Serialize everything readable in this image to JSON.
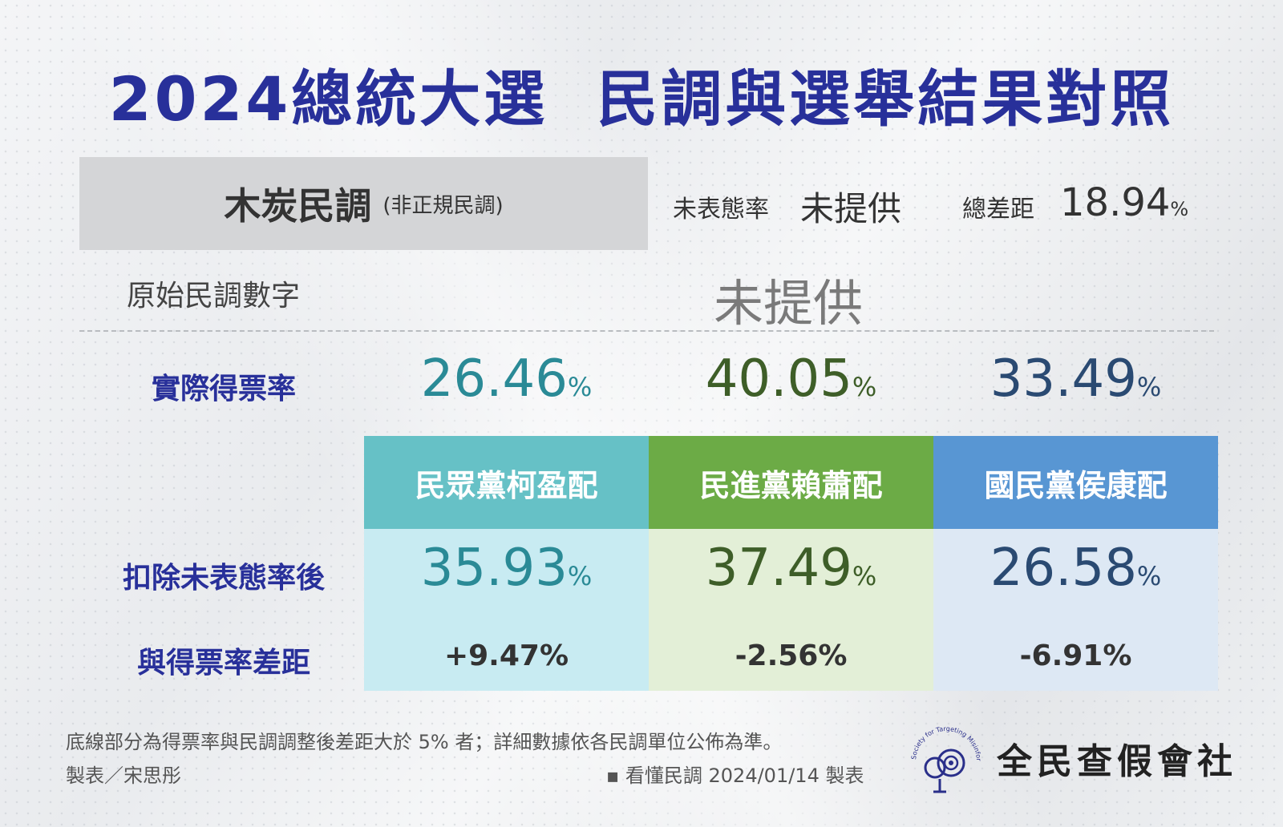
{
  "title": "2024總統大選  民調與選舉結果對照",
  "survey": {
    "name": "木炭民調",
    "note": "(非正規民調)",
    "undisclosed_label": "未表態率",
    "undisclosed_value": "未提供",
    "total_gap_label": "總差距",
    "total_gap_value": "18.94",
    "total_gap_unit": "%"
  },
  "raw": {
    "label": "原始民調數字",
    "value": "未提供"
  },
  "colors": {
    "title": "#28309a",
    "tpp": "#66c1c6",
    "tpp_light": "#c8ebf2",
    "dpp": "#6cab46",
    "dpp_light": "#e3efd7",
    "kmt": "#5896d3",
    "kmt_light": "#dde8f4"
  },
  "rows": {
    "actual": "實際得票率",
    "adjusted": "扣除未表態率後",
    "gap": "與得票率差距"
  },
  "chart_data": {
    "type": "table",
    "title": "2024總統大選  民調與選舉結果對照",
    "categories": [
      "民眾黨柯盈配",
      "民進黨賴蕭配",
      "國民黨侯康配"
    ],
    "series": [
      {
        "name": "實際得票率",
        "values": [
          26.46,
          40.05,
          33.49
        ]
      },
      {
        "name": "扣除未表態率後",
        "values": [
          35.93,
          37.49,
          26.58
        ]
      },
      {
        "name": "與得票率差距",
        "values": [
          9.47,
          -2.56,
          -6.91
        ]
      }
    ]
  },
  "columns": [
    {
      "name": "民眾黨柯盈配",
      "actual": "26.46",
      "adjusted": "35.93",
      "gap": "+9.47%",
      "unit": "%"
    },
    {
      "name": "民進黨賴蕭配",
      "actual": "40.05",
      "adjusted": "37.49",
      "gap": "-2.56%",
      "unit": "%"
    },
    {
      "name": "國民黨侯康配",
      "actual": "33.49",
      "adjusted": "26.58",
      "gap": "-6.91%",
      "unit": "%"
    }
  ],
  "footer": {
    "note": "底線部分為得票率與民調調整後差距大於 5% 者；詳細數據依各民調單位公佈為準。",
    "credit": "製表／宋思彤",
    "source": "▪ 看懂民調 2024/01/14 製表",
    "org_name": "全民查假會社",
    "org_english": "Taiwan Society for Targeting Misinformation"
  }
}
